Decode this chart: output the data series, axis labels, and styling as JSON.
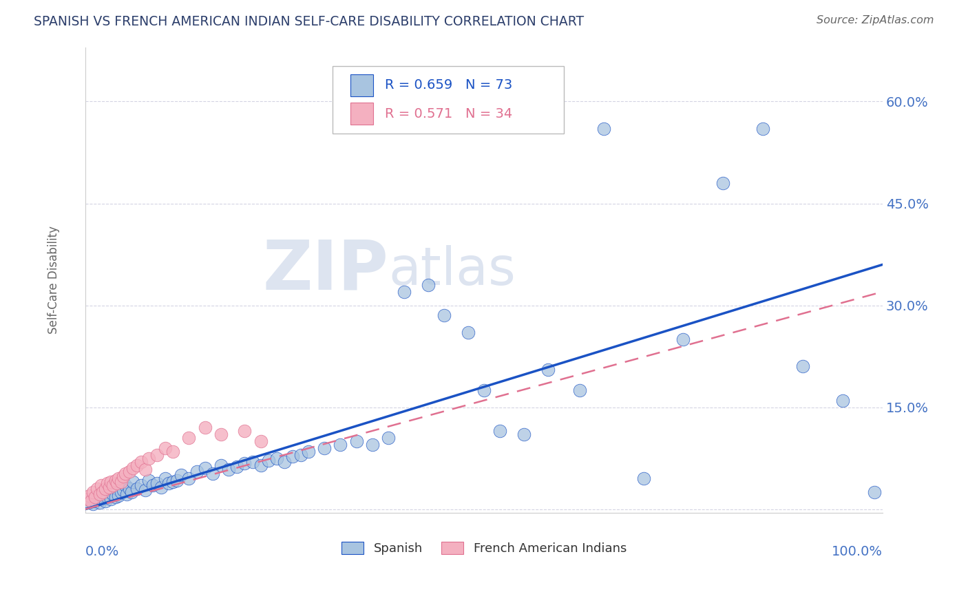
{
  "title": "SPANISH VS FRENCH AMERICAN INDIAN SELF-CARE DISABILITY CORRELATION CHART",
  "source": "Source: ZipAtlas.com",
  "ylabel": "Self-Care Disability",
  "r_spanish": 0.659,
  "n_spanish": 73,
  "r_french": 0.571,
  "n_french": 34,
  "xlim": [
    0,
    1.0
  ],
  "ylim": [
    -0.005,
    0.68
  ],
  "yticks": [
    0.0,
    0.15,
    0.3,
    0.45,
    0.6
  ],
  "ytick_labels": [
    "",
    "15.0%",
    "30.0%",
    "45.0%",
    "60.0%"
  ],
  "color_spanish": "#a8c4e0",
  "color_french": "#f4b0c0",
  "line_color_spanish": "#1a52c4",
  "line_color_french": "#e07090",
  "title_color": "#2c3e6b",
  "source_color": "#666666",
  "axis_label_color": "#4472c4",
  "watermark_color": "#dde4f0",
  "grid_color": "#d0d0e0",
  "spine_color": "#cccccc",
  "spanish_x": [
    0.005,
    0.008,
    0.01,
    0.012,
    0.015,
    0.018,
    0.02,
    0.022,
    0.025,
    0.028,
    0.03,
    0.032,
    0.035,
    0.038,
    0.04,
    0.042,
    0.045,
    0.048,
    0.05,
    0.052,
    0.055,
    0.058,
    0.06,
    0.065,
    0.07,
    0.075,
    0.08,
    0.085,
    0.09,
    0.095,
    0.1,
    0.105,
    0.11,
    0.115,
    0.12,
    0.13,
    0.14,
    0.15,
    0.16,
    0.17,
    0.18,
    0.19,
    0.2,
    0.21,
    0.22,
    0.23,
    0.24,
    0.25,
    0.26,
    0.27,
    0.28,
    0.3,
    0.32,
    0.34,
    0.36,
    0.38,
    0.4,
    0.43,
    0.45,
    0.48,
    0.5,
    0.52,
    0.55,
    0.58,
    0.62,
    0.65,
    0.7,
    0.75,
    0.8,
    0.85,
    0.9,
    0.95,
    0.99
  ],
  "spanish_y": [
    0.01,
    0.015,
    0.008,
    0.012,
    0.018,
    0.01,
    0.015,
    0.02,
    0.012,
    0.018,
    0.025,
    0.015,
    0.022,
    0.018,
    0.03,
    0.02,
    0.025,
    0.028,
    0.035,
    0.022,
    0.03,
    0.025,
    0.04,
    0.03,
    0.035,
    0.028,
    0.042,
    0.035,
    0.038,
    0.032,
    0.045,
    0.038,
    0.04,
    0.042,
    0.05,
    0.045,
    0.055,
    0.06,
    0.052,
    0.065,
    0.058,
    0.062,
    0.068,
    0.07,
    0.065,
    0.072,
    0.075,
    0.07,
    0.078,
    0.08,
    0.085,
    0.09,
    0.095,
    0.1,
    0.095,
    0.105,
    0.32,
    0.33,
    0.285,
    0.26,
    0.175,
    0.115,
    0.11,
    0.205,
    0.175,
    0.56,
    0.045,
    0.25,
    0.48,
    0.56,
    0.21,
    0.16,
    0.025
  ],
  "french_x": [
    0.003,
    0.005,
    0.007,
    0.01,
    0.012,
    0.015,
    0.018,
    0.02,
    0.022,
    0.025,
    0.028,
    0.03,
    0.032,
    0.035,
    0.038,
    0.04,
    0.042,
    0.045,
    0.048,
    0.05,
    0.055,
    0.06,
    0.065,
    0.07,
    0.075,
    0.08,
    0.09,
    0.1,
    0.11,
    0.13,
    0.15,
    0.17,
    0.2,
    0.22
  ],
  "french_y": [
    0.015,
    0.02,
    0.012,
    0.025,
    0.018,
    0.03,
    0.022,
    0.035,
    0.025,
    0.03,
    0.038,
    0.032,
    0.04,
    0.035,
    0.042,
    0.038,
    0.045,
    0.04,
    0.048,
    0.052,
    0.055,
    0.06,
    0.065,
    0.07,
    0.058,
    0.075,
    0.08,
    0.09,
    0.085,
    0.105,
    0.12,
    0.11,
    0.115,
    0.1
  ],
  "line_sp_x0": 0.0,
  "line_sp_y0": 0.0,
  "line_sp_x1": 1.0,
  "line_sp_y1": 0.36,
  "line_fr_x0": 0.0,
  "line_fr_y0": 0.0,
  "line_fr_x1": 1.0,
  "line_fr_y1": 0.32
}
